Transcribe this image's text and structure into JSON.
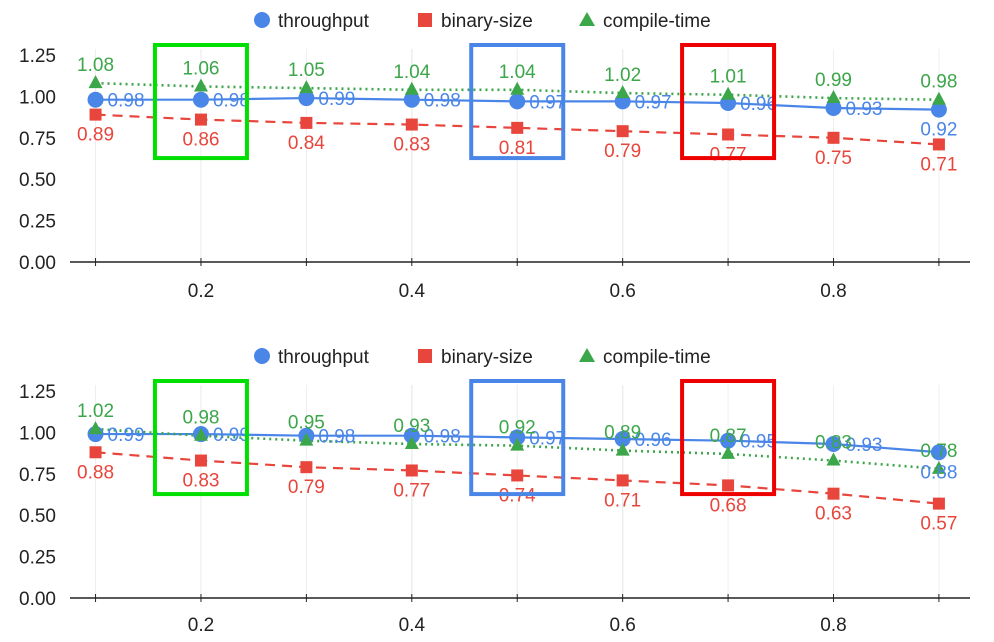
{
  "colors": {
    "throughput": "#4a86e8",
    "binary_size": "#e8453c",
    "compile_time": "#3ca64a",
    "grid": "#d9d9d9",
    "axis": "#222222",
    "box_green": "#00e000",
    "box_blue": "#4a86e8",
    "box_red": "#ee0000"
  },
  "chart_data": [
    {
      "type": "line",
      "x": [
        0.1,
        0.2,
        0.3,
        0.4,
        0.5,
        0.6,
        0.7,
        0.8,
        0.9
      ],
      "xticks": [
        "0.2",
        "0.4",
        "0.6",
        "0.8"
      ],
      "xtick_values": [
        0.2,
        0.4,
        0.6,
        0.8
      ],
      "yticks": [
        "0.00",
        "0.25",
        "0.50",
        "0.75",
        "1.00",
        "1.25"
      ],
      "ytick_values": [
        0,
        0.25,
        0.5,
        0.75,
        1.0,
        1.25
      ],
      "ylim": [
        0,
        1.25
      ],
      "xlim": [
        0.09,
        0.92
      ],
      "grid": "vertical",
      "legend_position": "top-center",
      "series": [
        {
          "name": "throughput",
          "marker": "circle",
          "line_style": "solid",
          "values": [
            0.98,
            0.98,
            0.99,
            0.98,
            0.97,
            0.97,
            0.96,
            0.93,
            0.92
          ],
          "labels": [
            "0.98",
            "0.98",
            "0.99",
            "0.98",
            "0.97",
            "0.97",
            "0.96",
            "0.93",
            "0.92"
          ]
        },
        {
          "name": "binary-size",
          "marker": "square",
          "line_style": "dashed",
          "values": [
            0.89,
            0.86,
            0.84,
            0.83,
            0.81,
            0.79,
            0.77,
            0.75,
            0.71
          ],
          "labels": [
            "0.89",
            "0.86",
            "0.84",
            "0.83",
            "0.81",
            "0.79",
            "0.77",
            "0.75",
            "0.71"
          ]
        },
        {
          "name": "compile-time",
          "marker": "triangle",
          "line_style": "dotted",
          "values": [
            1.08,
            1.06,
            1.05,
            1.04,
            1.04,
            1.02,
            1.01,
            0.99,
            0.98
          ],
          "labels": [
            "1.08",
            "1.06",
            "1.05",
            "1.04",
            "1.04",
            "1.02",
            "1.01",
            "0.99",
            "0.98"
          ]
        }
      ],
      "highlight_boxes": [
        {
          "x": 0.2,
          "color": "green"
        },
        {
          "x": 0.5,
          "color": "blue"
        },
        {
          "x": 0.7,
          "color": "red"
        }
      ]
    },
    {
      "type": "line",
      "x": [
        0.1,
        0.2,
        0.3,
        0.4,
        0.5,
        0.6,
        0.7,
        0.8,
        0.9
      ],
      "xticks": [
        "0.2",
        "0.4",
        "0.6",
        "0.8"
      ],
      "xtick_values": [
        0.2,
        0.4,
        0.6,
        0.8
      ],
      "yticks": [
        "0.00",
        "0.25",
        "0.50",
        "0.75",
        "1.00",
        "1.25"
      ],
      "ytick_values": [
        0,
        0.25,
        0.5,
        0.75,
        1.0,
        1.25
      ],
      "ylim": [
        0,
        1.25
      ],
      "xlim": [
        0.09,
        0.92
      ],
      "grid": "vertical",
      "legend_position": "top-center",
      "series": [
        {
          "name": "throughput",
          "marker": "circle",
          "line_style": "solid",
          "values": [
            0.99,
            0.99,
            0.98,
            0.98,
            0.97,
            0.96,
            0.95,
            0.93,
            0.88
          ],
          "labels": [
            "0.99",
            "0.99",
            "0.98",
            "0.98",
            "0.97",
            "0.96",
            "0.95",
            "0.93",
            "0.88"
          ]
        },
        {
          "name": "binary-size",
          "marker": "square",
          "line_style": "dashed",
          "values": [
            0.88,
            0.83,
            0.79,
            0.77,
            0.74,
            0.71,
            0.68,
            0.63,
            0.57
          ],
          "labels": [
            "0.88",
            "0.83",
            "0.79",
            "0.77",
            "0.74",
            "0.71",
            "0.68",
            "0.63",
            "0.57"
          ]
        },
        {
          "name": "compile-time",
          "marker": "triangle",
          "line_style": "dotted",
          "values": [
            1.02,
            0.98,
            0.95,
            0.93,
            0.92,
            0.89,
            0.87,
            0.83,
            0.78
          ],
          "labels": [
            "1.02",
            "0.98",
            "0.95",
            "0.93",
            "0.92",
            "0.89",
            "0.87",
            "0.83",
            "0.78"
          ]
        }
      ],
      "highlight_boxes": [
        {
          "x": 0.2,
          "color": "green"
        },
        {
          "x": 0.5,
          "color": "blue"
        },
        {
          "x": 0.7,
          "color": "red"
        }
      ]
    }
  ]
}
